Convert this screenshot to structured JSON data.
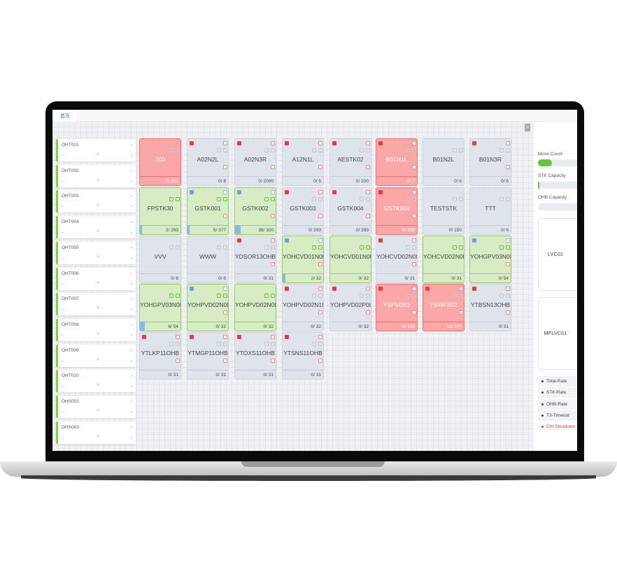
{
  "tabs": [
    {
      "label": "首页"
    }
  ],
  "oht_list": [
    {
      "name": "OHT001",
      "v1": "-",
      "v2": "-",
      "v3": "-"
    },
    {
      "name": "OHT002",
      "v1": "-",
      "v2": "-",
      "v3": "-"
    },
    {
      "name": "OHT003",
      "v1": "-",
      "v2": "-",
      "v3": "-"
    },
    {
      "name": "OHT004",
      "v1": "-",
      "v2": "-",
      "v3": "-"
    },
    {
      "name": "OHT005",
      "v1": "-",
      "v2": "-",
      "v3": "-"
    },
    {
      "name": "OHT006",
      "v1": "-",
      "v2": "-",
      "v3": "-"
    },
    {
      "name": "OHT007",
      "v1": "-",
      "v2": "-",
      "v3": "-"
    },
    {
      "name": "OHT008",
      "v1": "-",
      "v2": "-",
      "v3": "-"
    },
    {
      "name": "OHT009",
      "v1": "-",
      "v2": "-",
      "v3": "-"
    },
    {
      "name": "OHT010",
      "v1": "-",
      "v2": "-",
      "v3": "-"
    },
    {
      "name": "OHS002",
      "v1": "-",
      "v2": "-",
      "v3": "-"
    },
    {
      "name": "OHS003",
      "v1": "-",
      "v2": "-",
      "v3": "-"
    }
  ],
  "chevron": ">",
  "colors": {
    "alarm": "#e33d3d",
    "ok": "#7cd63a",
    "idle": "#dfe3ec"
  },
  "stockers": [
    {
      "name": "300",
      "count": "0/ 298",
      "state": "red",
      "fill": 0
    },
    {
      "name": "A02N2L",
      "count": "0/ 8",
      "state": "gray",
      "fill": 0
    },
    {
      "name": "A02N3R",
      "count": "0/ 2000",
      "state": "gray",
      "fill": 0
    },
    {
      "name": "A12N1L",
      "count": "0/ 5",
      "state": "gray",
      "fill": 0
    },
    {
      "name": "AESTK02",
      "count": "0/ 200",
      "state": "gray",
      "fill": 0
    },
    {
      "name": "B01N1L",
      "count": "0/ 7",
      "state": "red",
      "fill": 0
    },
    {
      "name": "B01N2L",
      "count": "0/ 6",
      "state": "gray",
      "fill": 0
    },
    {
      "name": "B01N3R",
      "count": "0/ 6",
      "state": "gray",
      "fill": 0
    },
    {
      "name": "FPSTK30",
      "count": "2/ 293",
      "state": "green",
      "fill": 0.007
    },
    {
      "name": "GSTK001",
      "count": "5/ 377",
      "state": "green",
      "fill": 0.013
    },
    {
      "name": "GSTK002",
      "count": "38/ 300",
      "state": "green",
      "fill": 0.127
    },
    {
      "name": "GSTK003",
      "count": "0/ 293",
      "state": "gray",
      "fill": 0
    },
    {
      "name": "GSTK004",
      "count": "0/ 293",
      "state": "gray",
      "fill": 0
    },
    {
      "name": "GSTK904",
      "count": "0/ 300",
      "state": "red",
      "fill": 0
    },
    {
      "name": "TESTSTK",
      "count": "0/ 150",
      "state": "gray",
      "fill": 0
    },
    {
      "name": "TTT",
      "count": "0/ 6",
      "state": "gray",
      "fill": 0
    },
    {
      "name": "VVV",
      "count": "0/ 6",
      "state": "gray",
      "fill": 0
    },
    {
      "name": "WWW",
      "count": "0/ 6",
      "state": "gray",
      "fill": 0
    },
    {
      "name": "YDSOR13OHB",
      "count": "0/ 31",
      "state": "gray",
      "fill": 0
    },
    {
      "name": "YOHCVD01N0L",
      "count": "2/ 32",
      "state": "green",
      "fill": 0.0625
    },
    {
      "name": "YOHCVD01N0L00",
      "count": "0/ 32",
      "state": "green",
      "fill": 0
    },
    {
      "name": "YOHCVD02N0R",
      "count": "0/ 31",
      "state": "gray",
      "fill": 0
    },
    {
      "name": "YOHCVD02N0R00",
      "count": "0/ 31",
      "state": "green",
      "fill": 0
    },
    {
      "name": "YOHGPV03N0L",
      "count": "0/ 54",
      "state": "green",
      "fill": 0
    },
    {
      "name": "YOHGPV03N0L00",
      "count": "6/ 54",
      "state": "green",
      "fill": 0.111
    },
    {
      "name": "YOHPVD02N0L",
      "count": "0/ 32",
      "state": "green",
      "fill": 0
    },
    {
      "name": "YOHPVD02N0L00",
      "count": "0/ 32",
      "state": "green",
      "fill": 0
    },
    {
      "name": "YOHPVD02N1L",
      "count": "0/ 32",
      "state": "gray",
      "fill": 0
    },
    {
      "name": "YOHPVD02P0L",
      "count": "0/ 32",
      "state": "gray",
      "fill": 0
    },
    {
      "name": "YSPVD01",
      "count": "6/ 150",
      "state": "red",
      "fill": 0
    },
    {
      "name": "YSWFS02",
      "count": "13/ 377",
      "state": "red",
      "fill": 0
    },
    {
      "name": "YTBSN13OHB",
      "count": "0/ 31",
      "state": "gray",
      "fill": 0
    },
    {
      "name": "YTLKP11OHB",
      "count": "0/ 31",
      "state": "gray",
      "fill": 0
    },
    {
      "name": "YTMGP11OHB",
      "count": "0/ 31",
      "state": "gray",
      "fill": 0
    },
    {
      "name": "YTOXS11OHB",
      "count": "0/ 31",
      "state": "gray",
      "fill": 0
    },
    {
      "name": "YTSNS11OHB",
      "count": "0/ 31",
      "state": "gray",
      "fill": 0
    }
  ],
  "right_panel": {
    "collapse": ">",
    "move_count": {
      "label": "Move Count",
      "fill": 0.35
    },
    "stk_capacity": {
      "label": "STK Capacity",
      "fill": 0.02
    },
    "ohb_capacity": {
      "label": "OHB Capacity",
      "fill": 0
    },
    "vehicles": [
      {
        "name": "LVC01"
      },
      {
        "name": "MFLVC01"
      }
    ],
    "legend": [
      {
        "label": "Total-Rate"
      },
      {
        "label": "STK-Rate"
      },
      {
        "label": "OHB-Rate"
      },
      {
        "label": "T3-Timeout"
      },
      {
        "label": "Ctrl-Shutdown",
        "alert": true
      }
    ]
  }
}
